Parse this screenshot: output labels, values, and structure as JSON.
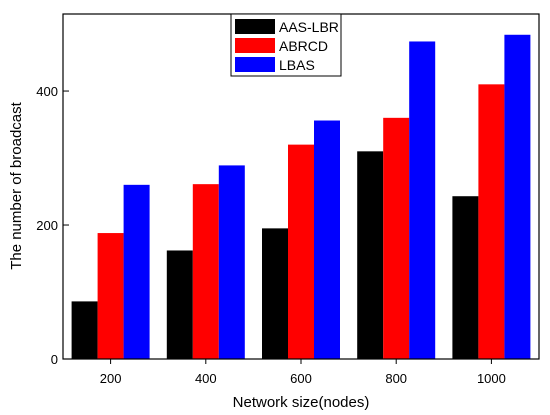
{
  "chart_data": {
    "type": "bar",
    "title": "",
    "xlabel": "Network size(nodes)",
    "ylabel": "The number of broadcast",
    "categories": [
      "200",
      "400",
      "600",
      "800",
      "1000"
    ],
    "ylim": [
      0,
      515
    ],
    "yticks": [
      0,
      200,
      400
    ],
    "grid": false,
    "legend_position": "top-center",
    "series": [
      {
        "name": "AAS-LBR",
        "color": "#000000",
        "values": [
          86,
          162,
          195,
          310,
          243
        ]
      },
      {
        "name": "ABRCD",
        "color": "#ff0000",
        "values": [
          188,
          261,
          320,
          360,
          410
        ]
      },
      {
        "name": "LBAS",
        "color": "#0000ff",
        "values": [
          260,
          289,
          356,
          474,
          484
        ]
      }
    ]
  }
}
